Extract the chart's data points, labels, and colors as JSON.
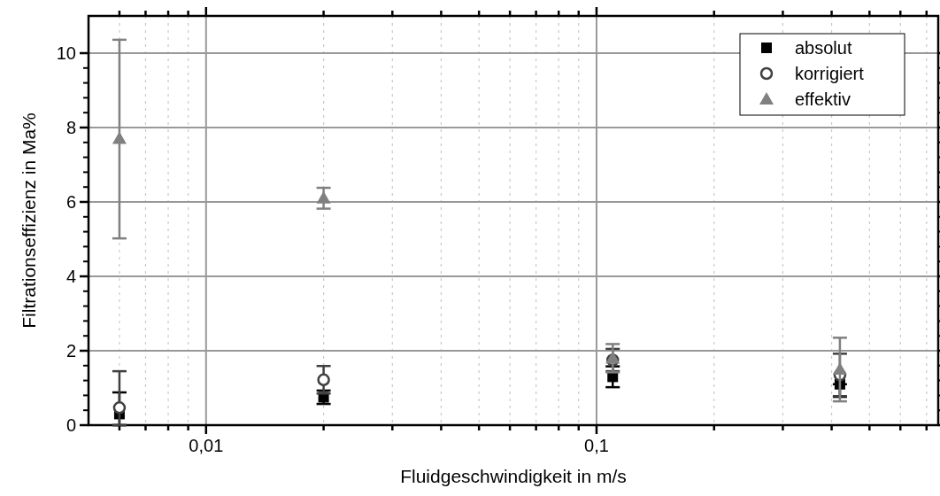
{
  "chart_data": {
    "type": "scatter",
    "xlabel": "Fluidgeschwindigkeit in m/s",
    "ylabel": "Filtrationseffizienz in Ma%",
    "log": "x",
    "x": [
      0.006,
      0.02,
      0.11,
      0.42
    ],
    "xlim": [
      0.005,
      0.75
    ],
    "xticks": [
      {
        "value": 0.006,
        "label": null
      },
      {
        "value": 0.007,
        "label": null
      },
      {
        "value": 0.008,
        "label": null
      },
      {
        "value": 0.009,
        "label": null
      },
      {
        "value": 0.01,
        "label": "0,01"
      },
      {
        "value": 0.02,
        "label": null
      },
      {
        "value": 0.03,
        "label": null
      },
      {
        "value": 0.04,
        "label": null
      },
      {
        "value": 0.05,
        "label": null
      },
      {
        "value": 0.06,
        "label": null
      },
      {
        "value": 0.07,
        "label": null
      },
      {
        "value": 0.08,
        "label": null
      },
      {
        "value": 0.09,
        "label": null
      },
      {
        "value": 0.1,
        "label": "0,1"
      },
      {
        "value": 0.2,
        "label": null
      },
      {
        "value": 0.3,
        "label": null
      },
      {
        "value": 0.4,
        "label": null
      },
      {
        "value": 0.5,
        "label": null
      },
      {
        "value": 0.6,
        "label": null
      },
      {
        "value": 0.7,
        "label": null
      }
    ],
    "ylim": [
      0,
      11
    ],
    "yticks": [
      0,
      2,
      4,
      6,
      8,
      10
    ],
    "grid": true,
    "legend": "top right",
    "series": [
      {
        "name": "absolut",
        "color": "#000000",
        "marker": "square",
        "values": [
          0.3,
          0.75,
          1.3,
          1.1
        ],
        "errors": [
          [
            0,
            0.88
          ],
          [
            0.57,
            0.93
          ],
          [
            1.02,
            1.58
          ],
          [
            0.76,
            1.1
          ]
        ]
      },
      {
        "name": "korrigiert",
        "color": "#404040",
        "marker": "circle",
        "values": [
          0.47,
          1.22,
          1.75,
          1.35
        ],
        "errors": [
          [
            0,
            1.45
          ],
          [
            0.85,
            1.59
          ],
          [
            1.45,
            2.05
          ],
          [
            0.78,
            1.92
          ]
        ]
      },
      {
        "name": "effektiv",
        "color": "#808080",
        "marker": "triangle",
        "values": [
          7.7,
          6.1,
          1.8,
          1.5
        ],
        "errors": [
          [
            5.02,
            10.36
          ],
          [
            5.82,
            6.38
          ],
          [
            1.42,
            2.18
          ],
          [
            0.64,
            2.35
          ]
        ]
      }
    ]
  }
}
